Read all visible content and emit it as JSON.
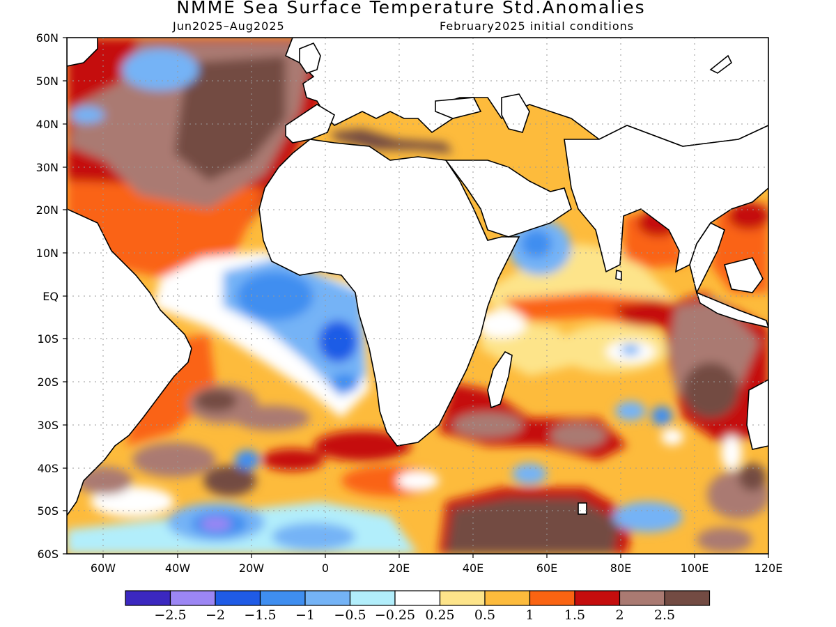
{
  "title": "NMME Sea Surface Temperature Std.Anomalies",
  "subtitle_left": "Jun2025–Aug2025",
  "subtitle_right": "February2025 initial conditions",
  "lat_labels": [
    "60N",
    "50N",
    "40N",
    "30N",
    "20N",
    "10N",
    "EQ",
    "10S",
    "20S",
    "30S",
    "40S",
    "50S",
    "60S"
  ],
  "lon_labels": [
    "60W",
    "40W",
    "20W",
    "0",
    "20E",
    "40E",
    "60E",
    "80E",
    "100E",
    "120E"
  ],
  "colorbar": {
    "colors": [
      "#3b28c0",
      "#9c86f4",
      "#1f5be6",
      "#3f8ef0",
      "#74b3f6",
      "#b2eefb",
      "#ffffff",
      "#fde48a",
      "#fdbb3c",
      "#fa6412",
      "#c50d0d",
      "#aa7a72",
      "#734b43"
    ],
    "labels": [
      "−2.5",
      "−2",
      "−1.5",
      "−1",
      "−0.5",
      "−0.25",
      "0.25",
      "0.5",
      "1",
      "1.5",
      "2",
      "2.5"
    ]
  }
}
